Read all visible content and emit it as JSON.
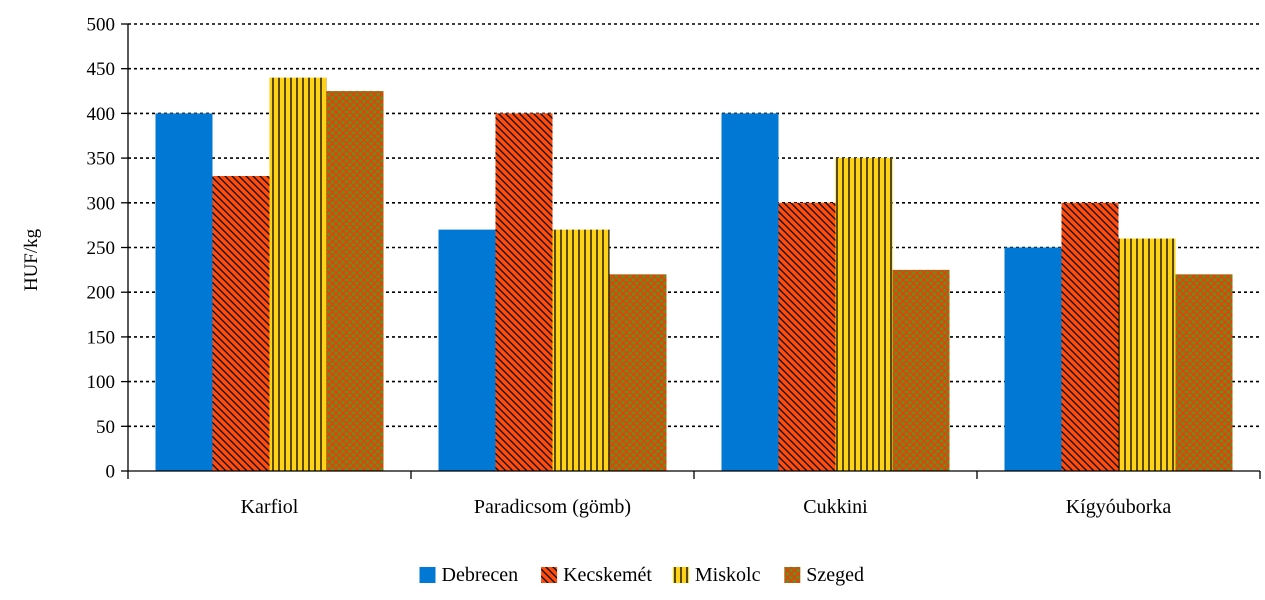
{
  "chart_data": {
    "type": "bar",
    "categories": [
      "Karfiol",
      "Paradicsom (gömb)",
      "Cukkini",
      "Kígyóuborka"
    ],
    "series": [
      {
        "name": "Debrecen",
        "values": [
          400,
          270,
          400,
          250
        ],
        "color": "#0078d4",
        "pattern": "solid"
      },
      {
        "name": "Kecskemét",
        "values": [
          330,
          400,
          300,
          300
        ],
        "color": "#ff4a10",
        "pattern": "diagonal"
      },
      {
        "name": "Miskolc",
        "values": [
          440,
          270,
          350,
          260
        ],
        "color": "#ffd21a",
        "pattern": "vertical"
      },
      {
        "name": "Szeged",
        "values": [
          425,
          220,
          225,
          220
        ],
        "color": "#6e8a1e",
        "pattern": "crosshatch"
      }
    ],
    "xlabel": "",
    "ylabel": "HUF/kg",
    "ylim": [
      0,
      500
    ],
    "yticks": [
      0,
      50,
      100,
      150,
      200,
      250,
      300,
      350,
      400,
      450,
      500
    ],
    "grid": true,
    "legend_position": "bottom"
  }
}
